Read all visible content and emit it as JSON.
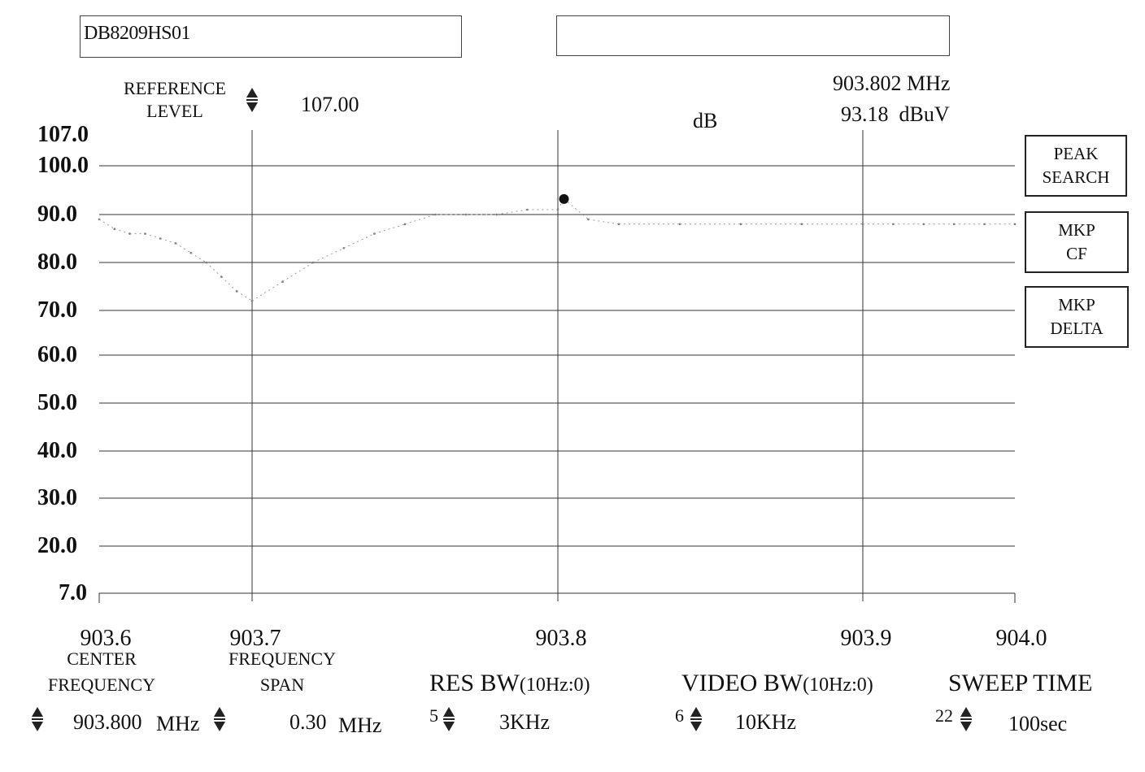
{
  "header": {
    "trace_title": "DB8209HS01",
    "secondary_field": ""
  },
  "reference_level": {
    "label_line1": "REFERENCE",
    "label_line2": "LEVEL",
    "value": "107.00"
  },
  "marker": {
    "frequency": "903.802 MHz",
    "level": "93.18  dBuV",
    "unit_label": "dB"
  },
  "side_buttons": [
    {
      "line1": "PEAK",
      "line2": "SEARCH"
    },
    {
      "line1": "MKP",
      "line2": "CF"
    },
    {
      "line1": "MKP",
      "line2": "DELTA"
    }
  ],
  "axis": {
    "y_ticks": [
      "107.0",
      "100.0",
      "90.0",
      "80.0",
      "70.0",
      "60.0",
      "50.0",
      "40.0",
      "30.0",
      "20.0",
      "7.0"
    ],
    "x_ticks": [
      "903.6",
      "903.7",
      "903.8",
      "903.9",
      "904.0"
    ]
  },
  "controls": {
    "center_frequency": {
      "label_line1": "CENTER",
      "label_line2": "FREQUENCY",
      "value": "903.800",
      "unit": "MHz"
    },
    "frequency_span": {
      "label_line1": "FREQUENCY",
      "label_line2": "SPAN",
      "value": "0.30",
      "unit": "MHz"
    },
    "res_bw": {
      "label": "RES BW",
      "label_suffix": "(10Hz:0)",
      "index": "5",
      "value": "3KHz"
    },
    "video_bw": {
      "label": "VIDEO BW",
      "label_suffix": "(10Hz:0)",
      "index": "6",
      "value": "10KHz"
    },
    "sweep_time": {
      "label": "SWEEP TIME",
      "index": "22",
      "value": "100sec"
    }
  },
  "chart_data": {
    "type": "line",
    "x_unit": "MHz",
    "y_unit": "dBuV",
    "xlim": [
      903.6,
      904.0
    ],
    "ylim": [
      7.0,
      107.0
    ],
    "grid": true,
    "series": [
      {
        "x": [
          903.6,
          903.61,
          903.62,
          903.63,
          903.64,
          903.65,
          903.66,
          903.67,
          903.68,
          903.69,
          903.7,
          903.71,
          903.72,
          903.73,
          903.74,
          903.75,
          903.76,
          903.77,
          903.78,
          903.79,
          903.8,
          903.802,
          903.81,
          903.82,
          903.84,
          903.86,
          903.88,
          903.9,
          903.92,
          903.94,
          903.96,
          903.98,
          904.0
        ],
        "y": [
          89,
          87,
          86,
          86,
          85,
          84,
          82,
          80,
          77,
          74,
          72,
          76,
          80,
          83,
          86,
          88,
          90,
          90,
          90,
          91,
          91,
          93.18,
          89,
          88,
          88,
          88,
          88,
          88,
          88,
          88,
          88,
          88,
          88
        ]
      }
    ],
    "markers": [
      {
        "x": 903.802,
        "y": 93.18
      }
    ]
  }
}
